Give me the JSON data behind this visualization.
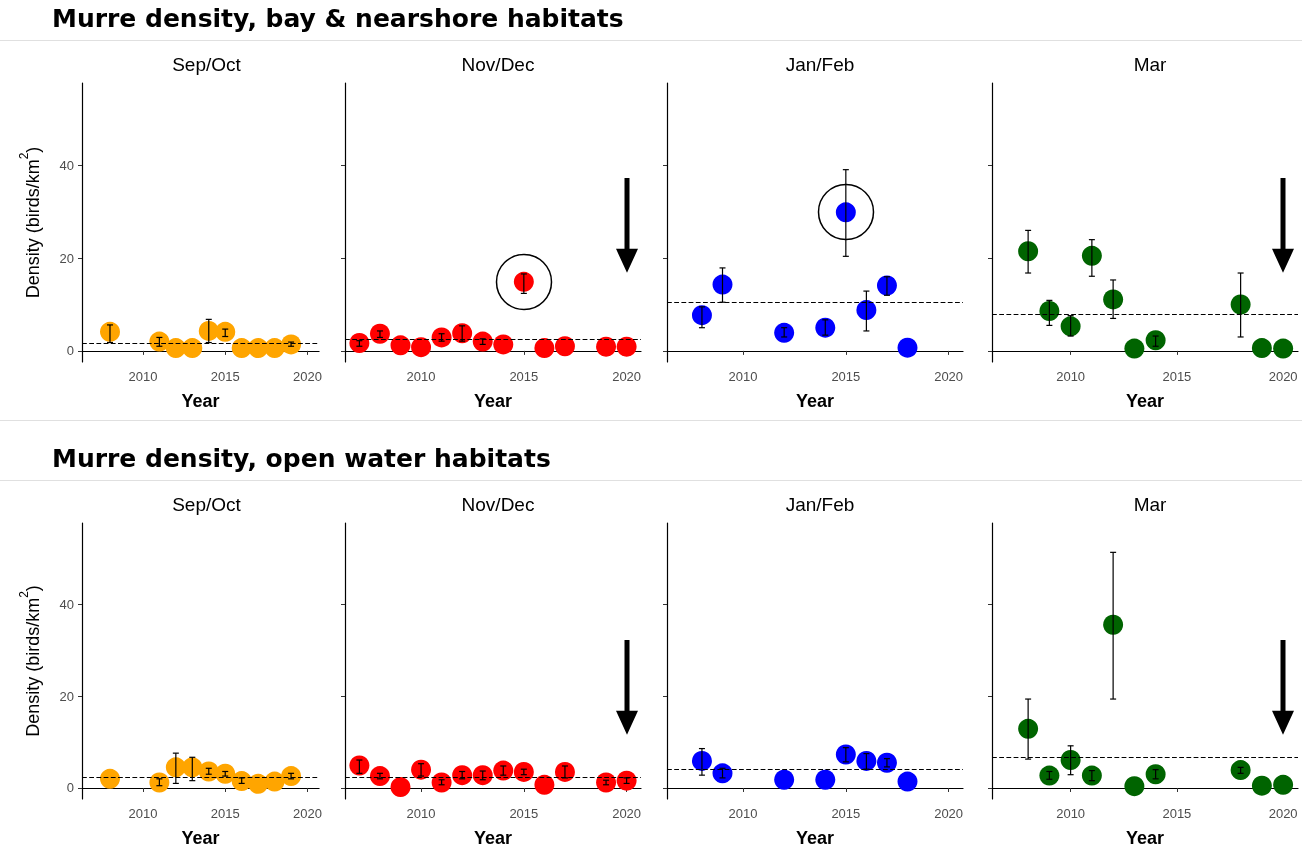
{
  "chart_data": [
    {
      "type": "scatter",
      "subtitle": "Murre density, bay & nearshore habitats",
      "title": "Sep/Oct",
      "xlabel": "Year",
      "ylabel": "Density (birds/km$^{2}$)",
      "color": "#ffa500",
      "marker": "circle",
      "x": [
        2008,
        2011,
        2012,
        2013,
        2014,
        2015,
        2016,
        2017,
        2018,
        2019
      ],
      "values": [
        4.1,
        2.0,
        0.6,
        0.6,
        4.3,
        4.1,
        0.6,
        0.6,
        0.6,
        1.4
      ],
      "errors": [
        [
          1.8,
          5.6
        ],
        [
          1.0,
          2.9
        ],
        null,
        null,
        [
          1.8,
          6.8
        ],
        [
          3.1,
          4.7
        ],
        null,
        null,
        null,
        [
          1.0,
          1.9
        ]
      ],
      "ref_lines": [
        {
          "axis": "y",
          "value": 1.6,
          "line_style": "dashed"
        }
      ],
      "xlim": [
        2006.3,
        2020.7
      ],
      "ylim": [
        -2.4,
        57.8
      ],
      "xticks": [
        2010,
        2015,
        2020
      ],
      "yticks": [
        0,
        20,
        40
      ]
    },
    {
      "type": "scatter",
      "title": "Nov/Dec",
      "xlabel": "Year",
      "color": "#ff0000",
      "marker": "circle",
      "x": [
        2007,
        2008,
        2009,
        2010,
        2011,
        2012,
        2013,
        2014,
        2015,
        2016,
        2017,
        2019,
        2020
      ],
      "values": [
        1.7,
        3.7,
        1.2,
        0.8,
        2.9,
        3.8,
        2.0,
        1.4,
        14.9,
        0.6,
        1.0,
        0.9,
        0.9
      ],
      "errors": [
        [
          1.0,
          2.2
        ],
        [
          2.9,
          4.3
        ],
        null,
        null,
        [
          2.1,
          3.7
        ],
        [
          2.1,
          5.4
        ],
        [
          1.4,
          2.6
        ],
        null,
        [
          12.4,
          16.6
        ],
        null,
        null,
        null,
        null
      ],
      "ref_lines": [
        {
          "axis": "y",
          "value": 2.5,
          "line_style": "dashed"
        }
      ],
      "xlim": [
        2006.3,
        2020.7
      ],
      "ylim": [
        -2.4,
        57.8
      ],
      "xticks": [
        2010,
        2015,
        2020
      ],
      "yticks": [
        0,
        20,
        40
      ],
      "tick_labels": "x"
    },
    {
      "type": "scatter",
      "title": "Jan/Feb",
      "xlabel": "Year",
      "color": "#0000ff",
      "marker": "circle",
      "x": [
        2008,
        2009,
        2012,
        2014,
        2015,
        2016,
        2017,
        2018
      ],
      "values": [
        7.7,
        14.3,
        3.9,
        5.0,
        29.9,
        8.8,
        14.1,
        0.7
      ],
      "errors": [
        [
          5.0,
          9.5
        ],
        [
          10.5,
          17.9
        ],
        [
          3.0,
          5.0
        ],
        [
          3.4,
          6.7
        ],
        [
          20.4,
          39.1
        ],
        [
          4.3,
          12.9
        ],
        [
          12.0,
          16.0
        ],
        null
      ],
      "ref_lines": [
        {
          "axis": "y",
          "value": 10.5,
          "line_style": "dashed"
        }
      ],
      "xlim": [
        2006.3,
        2020.7
      ],
      "ylim": [
        -2.4,
        57.8
      ],
      "xticks": [
        2010,
        2015,
        2020
      ],
      "yticks": [
        0,
        20,
        40
      ],
      "tick_labels": "x"
    },
    {
      "type": "scatter",
      "title": "Mar",
      "xlabel": "Year",
      "color": "#006400",
      "marker": "circle",
      "x": [
        2008,
        2009,
        2010,
        2011,
        2012,
        2013,
        2014,
        2018,
        2019,
        2020
      ],
      "values": [
        21.5,
        8.6,
        5.3,
        20.5,
        11.1,
        0.5,
        2.3,
        10.0,
        0.6,
        0.5
      ],
      "errors": [
        [
          16.8,
          26.0
        ],
        [
          5.5,
          10.9
        ],
        [
          3.2,
          7.6
        ],
        [
          16.1,
          24.0
        ],
        [
          7.0,
          15.3
        ],
        null,
        [
          1.0,
          3.2
        ],
        [
          3.0,
          16.8
        ],
        null,
        null
      ],
      "ref_lines": [
        {
          "axis": "y",
          "value": 7.8,
          "line_style": "dashed"
        }
      ],
      "xlim": [
        2006.3,
        2020.7
      ],
      "ylim": [
        -2.4,
        57.8
      ],
      "xticks": [
        2010,
        2015,
        2020
      ],
      "yticks": [
        0,
        20,
        40
      ],
      "tick_labels": "x"
    },
    {
      "type": "scatter",
      "subtitle": "Murre density, open water habitats",
      "title": "Sep/Oct",
      "xlabel": "Year",
      "ylabel": "Density (birds/km$^{2}$)",
      "color": "#ffa500",
      "marker": "circle",
      "x": [
        2008,
        2011,
        2012,
        2013,
        2014,
        2015,
        2016,
        2017,
        2018,
        2019
      ],
      "values": [
        2.0,
        1.2,
        4.5,
        4.5,
        3.6,
        3.1,
        1.5,
        0.9,
        1.4,
        2.6
      ],
      "errors": [
        null,
        [
          0.5,
          2.0
        ],
        [
          1.0,
          7.6
        ],
        [
          1.6,
          6.7
        ],
        [
          3.0,
          4.3
        ],
        [
          2.6,
          3.6
        ],
        [
          1.0,
          2.2
        ],
        null,
        null,
        [
          2.0,
          3.2
        ]
      ],
      "ref_lines": [
        {
          "axis": "y",
          "value": 2.4,
          "line_style": "dashed"
        }
      ],
      "xlim": [
        2006.3,
        2020.7
      ],
      "ylim": [
        -2.4,
        57.8
      ],
      "xticks": [
        2010,
        2015,
        2020
      ],
      "yticks": [
        0,
        20,
        40
      ]
    },
    {
      "type": "scatter",
      "title": "Nov/Dec",
      "xlabel": "Year",
      "color": "#ff0000",
      "marker": "circle",
      "x": [
        2007,
        2008,
        2009,
        2010,
        2011,
        2012,
        2013,
        2014,
        2015,
        2016,
        2017,
        2019,
        2020
      ],
      "values": [
        4.9,
        2.6,
        0.2,
        4.0,
        1.2,
        2.8,
        2.8,
        3.8,
        3.5,
        0.7,
        3.5,
        1.2,
        1.6
      ],
      "errors": [
        [
          3.2,
          6.1
        ],
        [
          2.0,
          3.2
        ],
        null,
        [
          2.6,
          5.3
        ],
        [
          0.7,
          1.8
        ],
        [
          2.0,
          3.6
        ],
        [
          1.8,
          3.7
        ],
        [
          2.8,
          4.8
        ],
        [
          2.9,
          4.1
        ],
        null,
        [
          2.2,
          4.8
        ],
        [
          0.7,
          1.7
        ],
        [
          1.0,
          2.2
        ]
      ],
      "ref_lines": [
        {
          "axis": "y",
          "value": 2.4,
          "line_style": "dashed"
        }
      ],
      "xlim": [
        2006.3,
        2020.7
      ],
      "ylim": [
        -2.4,
        57.8
      ],
      "xticks": [
        2010,
        2015,
        2020
      ],
      "yticks": [
        0,
        20,
        40
      ],
      "tick_labels": "x"
    },
    {
      "type": "scatter",
      "title": "Jan/Feb",
      "xlabel": "Year",
      "color": "#0000ff",
      "marker": "circle",
      "x": [
        2008,
        2009,
        2012,
        2014,
        2015,
        2016,
        2017,
        2018
      ],
      "values": [
        5.9,
        3.2,
        1.8,
        1.8,
        7.3,
        5.9,
        5.5,
        1.4
      ],
      "errors": [
        [
          2.8,
          8.6
        ],
        [
          2.2,
          4.3
        ],
        null,
        null,
        [
          5.7,
          8.8
        ],
        [
          4.1,
          7.5
        ],
        [
          4.6,
          6.4
        ],
        null
      ],
      "ref_lines": [
        {
          "axis": "y",
          "value": 4.0,
          "line_style": "dashed"
        }
      ],
      "xlim": [
        2006.3,
        2020.7
      ],
      "ylim": [
        -2.4,
        57.8
      ],
      "xticks": [
        2010,
        2015,
        2020
      ],
      "yticks": [
        0,
        20,
        40
      ],
      "tick_labels": "x"
    },
    {
      "type": "scatter",
      "title": "Mar",
      "xlabel": "Year",
      "color": "#006400",
      "marker": "circle",
      "x": [
        2008,
        2009,
        2010,
        2011,
        2012,
        2013,
        2014,
        2018,
        2019,
        2020
      ],
      "values": [
        12.9,
        2.7,
        6.1,
        2.7,
        35.6,
        0.4,
        3.0,
        3.9,
        0.5,
        0.7
      ],
      "errors": [
        [
          6.3,
          19.4
        ],
        [
          1.9,
          3.6
        ],
        [
          2.9,
          9.2
        ],
        [
          1.6,
          3.8
        ],
        [
          19.4,
          51.4
        ],
        null,
        [
          2.0,
          4.0
        ],
        [
          3.2,
          4.5
        ],
        null,
        null
      ],
      "ref_lines": [
        {
          "axis": "y",
          "value": 6.6,
          "line_style": "dashed"
        }
      ],
      "xlim": [
        2006.3,
        2020.7
      ],
      "ylim": [
        -2.4,
        57.8
      ],
      "xticks": [
        2010,
        2015,
        2020
      ],
      "yticks": [
        0,
        20,
        40
      ],
      "tick_labels": "x"
    }
  ]
}
